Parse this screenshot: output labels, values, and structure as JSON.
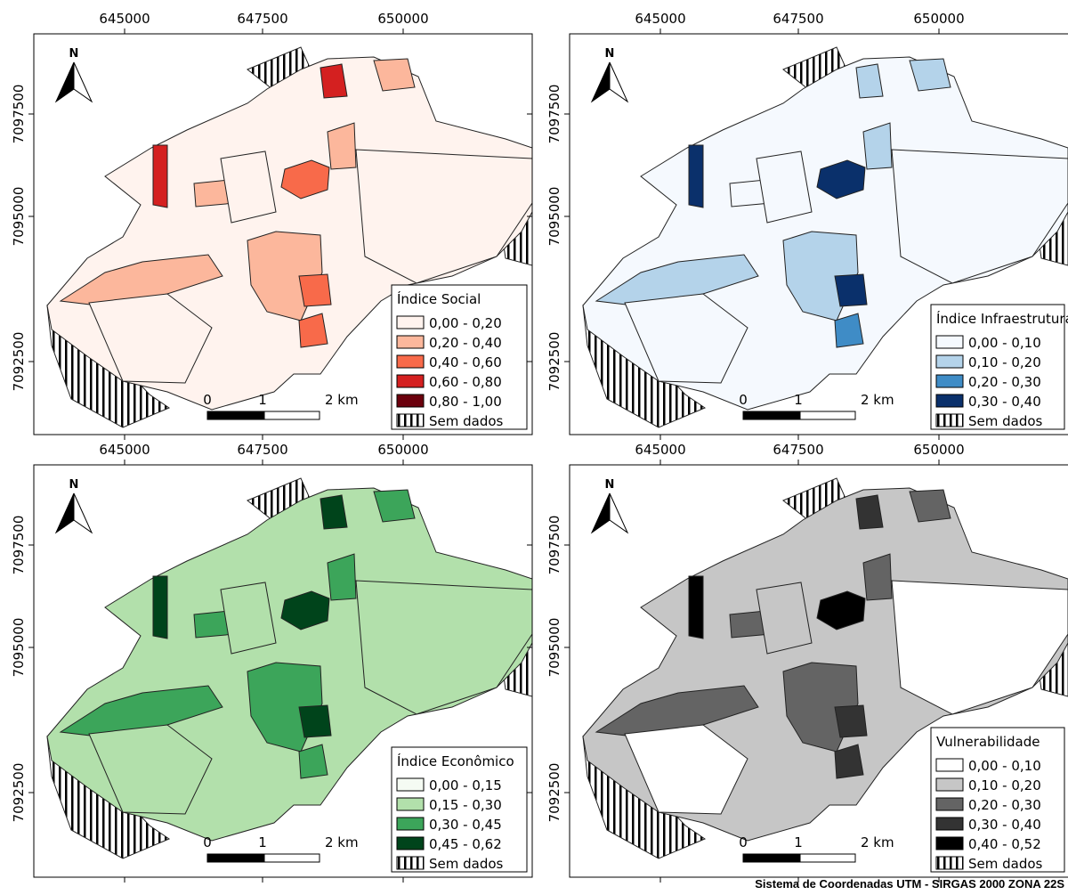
{
  "x_ticks": [
    "645000",
    "647500",
    "650000"
  ],
  "y_ticks": [
    "7097500",
    "7095000",
    "7092500"
  ],
  "scale_labels": [
    "0",
    "1",
    "2 km"
  ],
  "north": "N",
  "no_data_label": "Sem dados",
  "panels": [
    {
      "legend_title": "Índice Social",
      "legend": [
        {
          "label": "0,00 - 0,20",
          "color": "#fff3ee"
        },
        {
          "label": "0,20 - 0,40",
          "color": "#fcb79c"
        },
        {
          "label": "0,40 - 0,60",
          "color": "#f86a4a"
        },
        {
          "label": "0,60 - 0,80",
          "color": "#d42020"
        },
        {
          "label": "0,80 - 1,00",
          "color": "#6b000d"
        }
      ]
    },
    {
      "legend_title": "Índice Infraestrutura",
      "legend": [
        {
          "label": "0,00 - 0,10",
          "color": "#f5f9fe"
        },
        {
          "label": "0,10 - 0,20",
          "color": "#b4d3ea"
        },
        {
          "label": "0,20 - 0,30",
          "color": "#3f8cc6"
        },
        {
          "label": "0,30 - 0,40",
          "color": "#0a306b"
        }
      ]
    },
    {
      "legend_title": "Índice Econômico",
      "legend": [
        {
          "label": "0,00 - 0,15",
          "color": "#f5fbf3"
        },
        {
          "label": "0,15 - 0,30",
          "color": "#b2e0ab"
        },
        {
          "label": "0,30 - 0,45",
          "color": "#3ca55a"
        },
        {
          "label": "0,45 - 0,62",
          "color": "#00441b"
        }
      ]
    },
    {
      "legend_title": "Vulnerabilidade",
      "legend": [
        {
          "label": "0,00 - 0,10",
          "color": "#ffffff"
        },
        {
          "label": "0,10 - 0,20",
          "color": "#c6c6c6"
        },
        {
          "label": "0,20 - 0,30",
          "color": "#646464"
        },
        {
          "label": "0,30 - 0,40",
          "color": "#333333"
        },
        {
          "label": "0,40 - 0,52",
          "color": "#000000"
        }
      ]
    }
  ],
  "footer": "Sistema de Coordenadas UTM - SIRGAS 2000 ZONA 22S"
}
